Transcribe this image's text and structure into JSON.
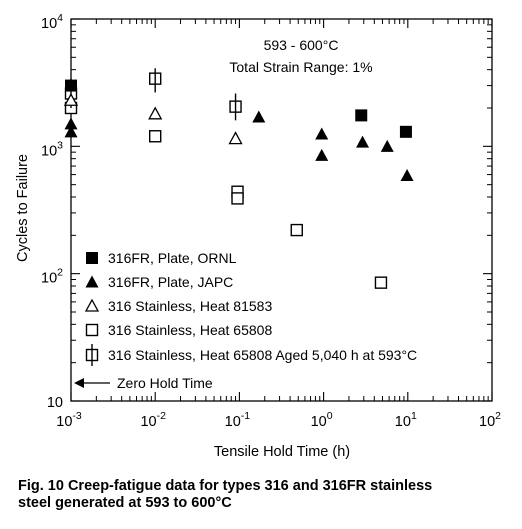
{
  "chart_data": {
    "type": "scatter",
    "annotation_lines": [
      "593 - 600°C",
      "Total Strain Range: 1%"
    ],
    "xlabel": "Tensile Hold Time (h)",
    "ylabel": "Cycles to Failure",
    "x_scale": "log",
    "y_scale": "log",
    "xlim": [
      0.001,
      100
    ],
    "ylim": [
      10,
      10000
    ],
    "x_ticks": [
      {
        "base": "10",
        "exp": "-3",
        "value": 0.001
      },
      {
        "base": "10",
        "exp": "-2",
        "value": 0.01
      },
      {
        "base": "10",
        "exp": "-1",
        "value": 0.1
      },
      {
        "base": "10",
        "exp": "0",
        "value": 1
      },
      {
        "base": "10",
        "exp": "1",
        "value": 10
      },
      {
        "base": "10",
        "exp": "2",
        "value": 100
      }
    ],
    "y_ticks": [
      {
        "base": "10",
        "exp": "",
        "value": 10
      },
      {
        "base": "10",
        "exp": "2",
        "value": 100
      },
      {
        "base": "10",
        "exp": "3",
        "value": 1000
      },
      {
        "base": "10",
        "exp": "4",
        "value": 10000
      }
    ],
    "grid": false,
    "legend_position": "bottom-left",
    "zero_hold_label": "Zero Hold Time",
    "series": [
      {
        "name": "316FR, Plate, ORNL",
        "marker": "filled-square",
        "points": [
          [
            0.001,
            3000
          ],
          [
            2.8,
            1750
          ],
          [
            9.5,
            1300
          ]
        ]
      },
      {
        "name": "316FR, Plate, JAPC",
        "marker": "filled-triangle",
        "points": [
          [
            0.001,
            1500
          ],
          [
            0.001,
            1300
          ],
          [
            0.17,
            1700
          ],
          [
            0.95,
            1250
          ],
          [
            0.95,
            850
          ],
          [
            2.9,
            1080
          ],
          [
            5.7,
            1000
          ],
          [
            9.8,
            590
          ]
        ]
      },
      {
        "name": "316 Stainless, Heat 81583",
        "marker": "open-triangle",
        "points": [
          [
            0.001,
            2300
          ],
          [
            0.01,
            1800
          ],
          [
            0.09,
            1150
          ]
        ]
      },
      {
        "name": "316 Stainless, Heat 65808",
        "marker": "open-square",
        "points": [
          [
            0.001,
            2000
          ],
          [
            0.01,
            1200
          ],
          [
            0.095,
            440
          ],
          [
            0.095,
            390
          ],
          [
            0.48,
            220
          ],
          [
            4.8,
            85
          ]
        ]
      },
      {
        "name": "316 Stainless, Heat 65808 Aged 5,040 h at 593°C",
        "marker": "open-square-errorbar",
        "points": [
          [
            0.001,
            2600,
            2000,
            3400
          ],
          [
            0.01,
            3400,
            2650,
            4100
          ],
          [
            0.09,
            2050,
            1600,
            2600
          ]
        ]
      }
    ]
  },
  "caption": {
    "line1": "Fig. 10   Creep-fatigue data for types 316 and 316FR stainless",
    "line2": "steel generated at 593 to 600°C"
  }
}
